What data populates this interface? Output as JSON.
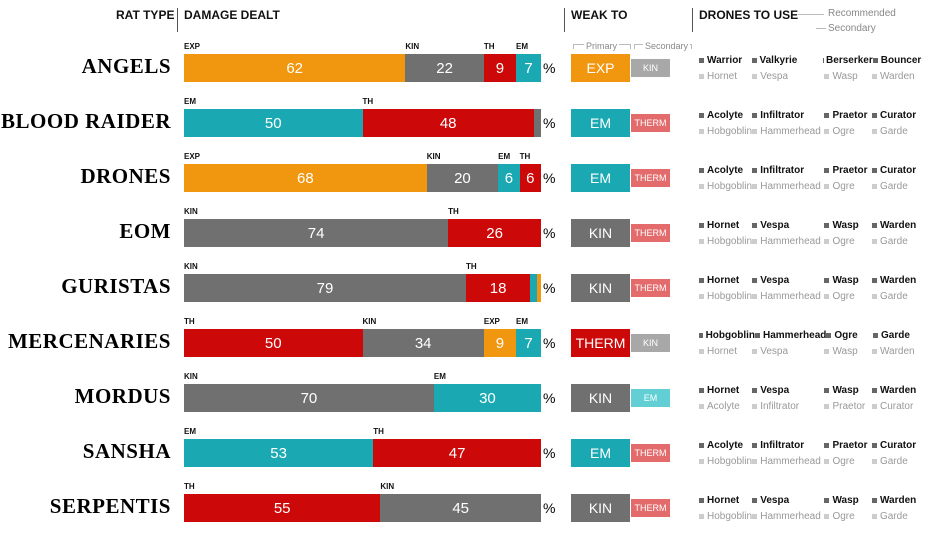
{
  "headers": {
    "rat_type": "RAT TYPE",
    "damage_dealt": "DAMAGE DEALT",
    "weak_to": "WEAK TO",
    "drones_to_use": "DRONES TO USE",
    "recommended": "Recommended",
    "secondary": "Secondary",
    "primary_note": "Primary",
    "secondary_note": "Secondary",
    "percent": "%"
  },
  "colors": {
    "EXP": "#f0960f",
    "KIN": "#707070",
    "TH": "#cc0808",
    "EM": "#1aa9b3",
    "EXP_light": "#f0960f",
    "KIN_light": "#a8a8a8",
    "TH_light": "#e46b6b",
    "EM_light": "#62cfd4"
  },
  "chart_data": {
    "type": "bar",
    "stacked": true,
    "orientation": "horizontal",
    "xlim": [
      0,
      100
    ],
    "unit": "%",
    "categories": [
      "ANGELS",
      "BLOOD RAIDER",
      "DRONES",
      "EOM",
      "GURISTAS",
      "MERCENARIES",
      "MORDUS",
      "SANSHA",
      "SERPENTIS"
    ],
    "rows": [
      {
        "name": "ANGELS",
        "segments": [
          {
            "type": "EXP",
            "value": 62,
            "label": "62"
          },
          {
            "type": "KIN",
            "value": 22,
            "label": "22"
          },
          {
            "type": "TH",
            "value": 9,
            "label": "9"
          },
          {
            "type": "EM",
            "value": 7,
            "label": "7"
          }
        ],
        "primary": "EXP",
        "primary_label": "EXP",
        "secondary": "KIN",
        "secondary_label": "KIN",
        "recommended": [
          "Warrior",
          "Valkyrie",
          "Berserker",
          "Bouncer"
        ],
        "secondary_drones": [
          "Hornet",
          "Vespa",
          "Wasp",
          "Warden"
        ]
      },
      {
        "name": "BLOOD RAIDER",
        "segments": [
          {
            "type": "EM",
            "value": 50,
            "label": "50"
          },
          {
            "type": "TH",
            "value": 48,
            "label": "48"
          },
          {
            "type": "KIN",
            "value": 2,
            "label": ""
          }
        ],
        "primary": "EM",
        "primary_label": "EM",
        "secondary": "TH",
        "secondary_label": "THERM",
        "recommended": [
          "Acolyte",
          "Infiltrator",
          "Praetor",
          "Curator"
        ],
        "secondary_drones": [
          "Hobgoblin",
          "Hammerhead",
          "Ogre",
          "Garde"
        ]
      },
      {
        "name": "DRONES",
        "segments": [
          {
            "type": "EXP",
            "value": 68,
            "label": "68"
          },
          {
            "type": "KIN",
            "value": 20,
            "label": "20"
          },
          {
            "type": "EM",
            "value": 6,
            "label": "6"
          },
          {
            "type": "TH",
            "value": 6,
            "label": "6"
          }
        ],
        "primary": "EM",
        "primary_label": "EM",
        "secondary": "TH",
        "secondary_label": "THERM",
        "recommended": [
          "Acolyte",
          "Infiltrator",
          "Praetor",
          "Curator"
        ],
        "secondary_drones": [
          "Hobgoblin",
          "Hammerhead",
          "Ogre",
          "Garde"
        ]
      },
      {
        "name": "EOM",
        "segments": [
          {
            "type": "KIN",
            "value": 74,
            "label": "74"
          },
          {
            "type": "TH",
            "value": 26,
            "label": "26"
          }
        ],
        "primary": "KIN",
        "primary_label": "KIN",
        "secondary": "TH",
        "secondary_label": "THERM",
        "recommended": [
          "Hornet",
          "Vespa",
          "Wasp",
          "Warden"
        ],
        "secondary_drones": [
          "Hobgoblin",
          "Hammerhead",
          "Ogre",
          "Garde"
        ]
      },
      {
        "name": "GURISTAS",
        "segments": [
          {
            "type": "KIN",
            "value": 79,
            "label": "79"
          },
          {
            "type": "TH",
            "value": 18,
            "label": "18"
          },
          {
            "type": "EM",
            "value": 2,
            "label": ""
          },
          {
            "type": "EXP",
            "value": 1,
            "label": ""
          }
        ],
        "primary": "KIN",
        "primary_label": "KIN",
        "secondary": "TH",
        "secondary_label": "THERM",
        "recommended": [
          "Hornet",
          "Vespa",
          "Wasp",
          "Warden"
        ],
        "secondary_drones": [
          "Hobgoblin",
          "Hammerhead",
          "Ogre",
          "Garde"
        ]
      },
      {
        "name": "MERCENARIES",
        "segments": [
          {
            "type": "TH",
            "value": 50,
            "label": "50"
          },
          {
            "type": "KIN",
            "value": 34,
            "label": "34"
          },
          {
            "type": "EXP",
            "value": 9,
            "label": "9"
          },
          {
            "type": "EM",
            "value": 7,
            "label": "7"
          }
        ],
        "primary": "TH",
        "primary_label": "THERM",
        "secondary": "KIN",
        "secondary_label": "KIN",
        "recommended": [
          "Hobgoblin",
          "Hammerhead",
          "Ogre",
          "Garde"
        ],
        "secondary_drones": [
          "Hornet",
          "Vespa",
          "Wasp",
          "Warden"
        ]
      },
      {
        "name": "MORDUS",
        "segments": [
          {
            "type": "KIN",
            "value": 70,
            "label": "70"
          },
          {
            "type": "EM",
            "value": 30,
            "label": "30"
          }
        ],
        "primary": "KIN",
        "primary_label": "KIN",
        "secondary": "EM",
        "secondary_label": "EM",
        "recommended": [
          "Hornet",
          "Vespa",
          "Wasp",
          "Warden"
        ],
        "secondary_drones": [
          "Acolyte",
          "Infiltrator",
          "Praetor",
          "Curator"
        ]
      },
      {
        "name": "SANSHA",
        "segments": [
          {
            "type": "EM",
            "value": 53,
            "label": "53"
          },
          {
            "type": "TH",
            "value": 47,
            "label": "47"
          }
        ],
        "primary": "EM",
        "primary_label": "EM",
        "secondary": "TH",
        "secondary_label": "THERM",
        "recommended": [
          "Acolyte",
          "Infiltrator",
          "Praetor",
          "Curator"
        ],
        "secondary_drones": [
          "Hobgoblin",
          "Hammerhead",
          "Ogre",
          "Garde"
        ]
      },
      {
        "name": "SERPENTIS",
        "segments": [
          {
            "type": "TH",
            "value": 55,
            "label": "55"
          },
          {
            "type": "KIN",
            "value": 45,
            "label": "45"
          }
        ],
        "primary": "KIN",
        "primary_label": "KIN",
        "secondary": "TH",
        "secondary_label": "THERM",
        "recommended": [
          "Hornet",
          "Vespa",
          "Wasp",
          "Warden"
        ],
        "secondary_drones": [
          "Hobgoblin",
          "Hammerhead",
          "Ogre",
          "Garde"
        ]
      }
    ]
  }
}
